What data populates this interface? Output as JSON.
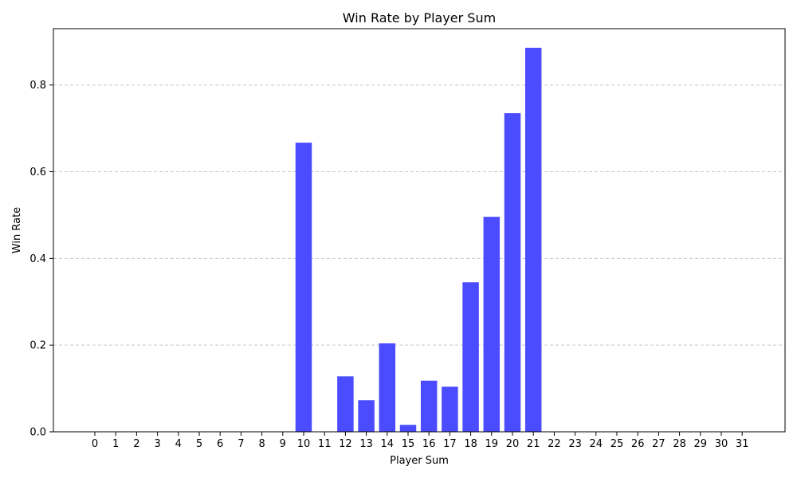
{
  "chart_data": {
    "type": "bar",
    "title": "Win Rate by Player Sum",
    "xlabel": "Player Sum",
    "ylabel": "Win Rate",
    "categories": [
      "0",
      "1",
      "2",
      "3",
      "4",
      "5",
      "6",
      "7",
      "8",
      "9",
      "10",
      "11",
      "12",
      "13",
      "14",
      "15",
      "16",
      "17",
      "18",
      "19",
      "20",
      "21",
      "22",
      "23",
      "24",
      "25",
      "26",
      "27",
      "28",
      "29",
      "30",
      "31"
    ],
    "values": [
      0,
      0,
      0,
      0,
      0,
      0,
      0,
      0,
      0,
      0,
      0.667,
      0,
      0.128,
      0.073,
      0.204,
      0.016,
      0.118,
      0.104,
      0.345,
      0.496,
      0.735,
      0.886,
      0,
      0,
      0,
      0,
      0,
      0,
      0,
      0,
      0,
      0
    ],
    "yticks": [
      "0.0",
      "0.2",
      "0.4",
      "0.6",
      "0.8"
    ],
    "ylim": [
      0,
      0.93
    ],
    "grid": "y-dashed",
    "bar_color": "#4b4bff",
    "grid_color": "#c8c8c8"
  }
}
